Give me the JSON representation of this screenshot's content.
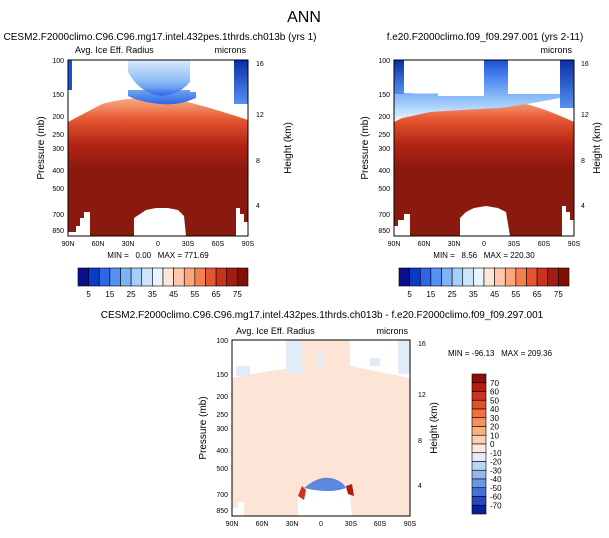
{
  "page_title": "ANN",
  "colors": {
    "dark_red": "#8B1A0E",
    "light_peach": "#FCE4D6",
    "white": "#FFFFFF"
  },
  "chart_data": [
    {
      "type": "heatmap",
      "id": "panel_top_left",
      "title": "CESM2.F2000climo.C96.C96.mg17.intel.432pes.1thrds.ch013b (yrs 1)",
      "left_label": "Avg. Ice Eff. Radius",
      "right_label": "microns",
      "ylabel": "Pressure (mb)",
      "y2label": "Height (km)",
      "xticks": [
        "90N",
        "60N",
        "30N",
        "0",
        "30S",
        "60S",
        "90S"
      ],
      "yticks": [
        "100",
        "150",
        "200",
        "250",
        "300",
        "400",
        "500",
        "700",
        "850"
      ],
      "y2ticks": [
        "16",
        "12",
        "8",
        "4"
      ],
      "stats_text": "MIN =   0.00   MAX = 771.69",
      "min": 0.0,
      "max": 771.69,
      "colorbar": {
        "orientation": "horizontal",
        "labels": [
          "5",
          "15",
          "25",
          "35",
          "45",
          "55",
          "65",
          "75"
        ],
        "colors": [
          "#08108E",
          "#0A3BC8",
          "#2E66E8",
          "#5591F2",
          "#7DB3F7",
          "#A6CFFA",
          "#CDE5FC",
          "#E8F4FE",
          "#FDE6D8",
          "#FCC9AC",
          "#FBA77D",
          "#F4804F",
          "#E45630",
          "#C8331F",
          "#A31C12",
          "#820E08"
        ]
      }
    },
    {
      "type": "heatmap",
      "id": "panel_top_right",
      "title": "f.e20.F2000climo.f09_f09.297.001 (yrs 2-11)",
      "left_label": "",
      "right_label": "microns",
      "ylabel": "Pressure (mb)",
      "y2label": "Height (km)",
      "xticks": [
        "90N",
        "60N",
        "30N",
        "0",
        "30S",
        "60S",
        "90S"
      ],
      "yticks": [
        "100",
        "150",
        "200",
        "250",
        "300",
        "400",
        "500",
        "700",
        "850"
      ],
      "y2ticks": [
        "16",
        "12",
        "8",
        "4"
      ],
      "stats_text": "MIN =   8.56   MAX = 220.30",
      "min": 8.56,
      "max": 220.3,
      "colorbar": {
        "orientation": "horizontal",
        "labels": [
          "5",
          "15",
          "25",
          "35",
          "45",
          "55",
          "65",
          "75"
        ],
        "colors": [
          "#08108E",
          "#0A3BC8",
          "#2E66E8",
          "#5591F2",
          "#7DB3F7",
          "#A6CFFA",
          "#CDE5FC",
          "#E8F4FE",
          "#FDE6D8",
          "#FCC9AC",
          "#FBA77D",
          "#F4804F",
          "#E45630",
          "#C8331F",
          "#A31C12",
          "#820E08"
        ]
      }
    },
    {
      "type": "heatmap",
      "id": "panel_difference",
      "title": "CESM2.F2000climo.C96.C96.mg17.intel.432pes.1thrds.ch013b - f.e20.F2000climo.f09_f09.297.001",
      "left_label": "Avg. Ice Eff. Radius",
      "right_label": "microns",
      "ylabel": "Pressure (mb)",
      "y2label": "Height (km)",
      "xticks": [
        "90N",
        "60N",
        "30N",
        "0",
        "30S",
        "60S",
        "90S"
      ],
      "yticks": [
        "100",
        "150",
        "200",
        "250",
        "300",
        "400",
        "500",
        "700",
        "850"
      ],
      "y2ticks": [
        "16",
        "12",
        "8",
        "4"
      ],
      "stats_text": "MIN = -96.13   MAX = 209.36",
      "min": -96.13,
      "max": 209.36,
      "colorbar": {
        "orientation": "vertical",
        "labels": [
          "70",
          "60",
          "50",
          "40",
          "30",
          "20",
          "10",
          "0",
          "-10",
          "-20",
          "-30",
          "-40",
          "-50",
          "-60",
          "-70"
        ],
        "colors": [
          "#8E0E08",
          "#B21C12",
          "#D0301E",
          "#E4502C",
          "#F07040",
          "#F6905C",
          "#FAB083",
          "#FCD0AE",
          "#FDE8D8",
          "#E0ECF8",
          "#BCD4F4",
          "#94B8EE",
          "#6A98E4",
          "#4272D8",
          "#2248C4",
          "#0A1E9E"
        ]
      }
    }
  ]
}
